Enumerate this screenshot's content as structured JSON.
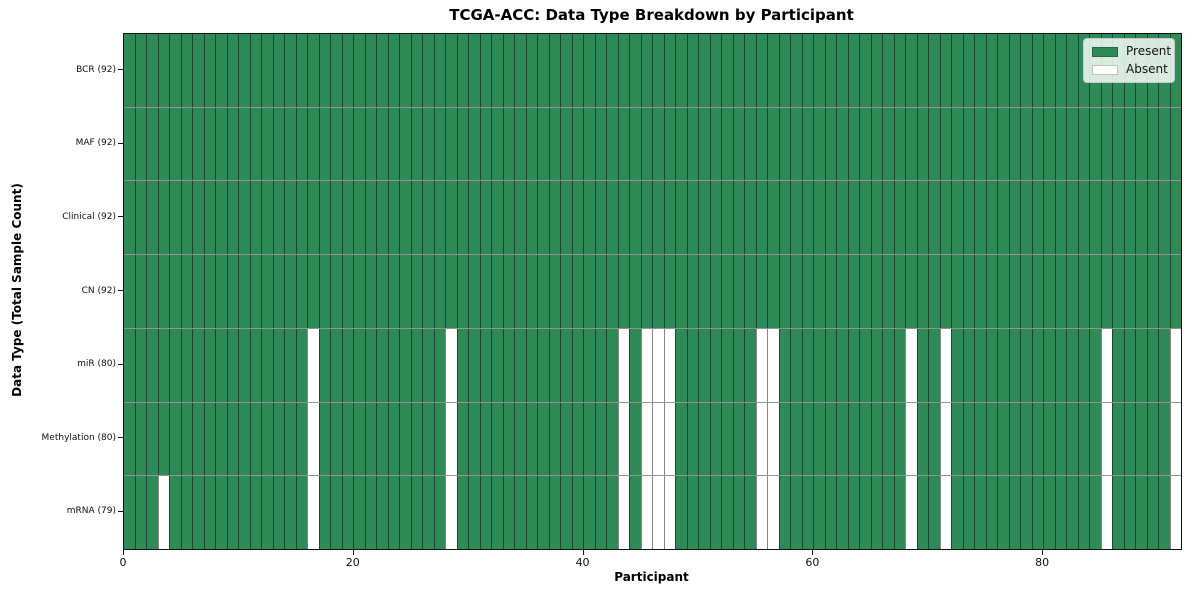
{
  "chart_data": {
    "type": "heatmap",
    "title": "TCGA-ACC: Data Type Breakdown by Participant",
    "xlabel": "Participant",
    "ylabel": "Data Type (Total Sample Count)",
    "n_participants": 92,
    "x_ticks": [
      0,
      20,
      40,
      60,
      80
    ],
    "xlim": [
      0,
      92
    ],
    "grid": "cell-borders",
    "legend_position": "upper right",
    "legend": [
      {
        "label": "Present",
        "color": "#2e8b57"
      },
      {
        "label": "Absent",
        "color": "#ffffff"
      }
    ],
    "colors": {
      "present": "#2e8b57",
      "absent": "#ffffff"
    },
    "rows": [
      {
        "key": "bcr",
        "label": "BCR (92)",
        "data_type": "BCR",
        "total_samples": 92,
        "absent_participants": []
      },
      {
        "key": "maf",
        "label": "MAF (92)",
        "data_type": "MAF",
        "total_samples": 92,
        "absent_participants": []
      },
      {
        "key": "clinical",
        "label": "Clinical (92)",
        "data_type": "Clinical",
        "total_samples": 92,
        "absent_participants": []
      },
      {
        "key": "cn",
        "label": "CN (92)",
        "data_type": "CN",
        "total_samples": 92,
        "absent_participants": []
      },
      {
        "key": "mir",
        "label": "miR (80)",
        "data_type": "miR",
        "total_samples": 80,
        "absent_participants": [
          16,
          28,
          43,
          45,
          46,
          47,
          55,
          56,
          68,
          71,
          85,
          91
        ]
      },
      {
        "key": "methylation",
        "label": "Methylation (80)",
        "data_type": "Methylation",
        "total_samples": 80,
        "absent_participants": [
          16,
          28,
          43,
          45,
          46,
          47,
          55,
          56,
          68,
          71,
          85,
          91
        ]
      },
      {
        "key": "mrna",
        "label": "mRNA (79)",
        "data_type": "mRNA",
        "total_samples": 79,
        "absent_participants": [
          3,
          16,
          28,
          43,
          45,
          46,
          47,
          55,
          56,
          68,
          71,
          85,
          91
        ]
      }
    ]
  }
}
